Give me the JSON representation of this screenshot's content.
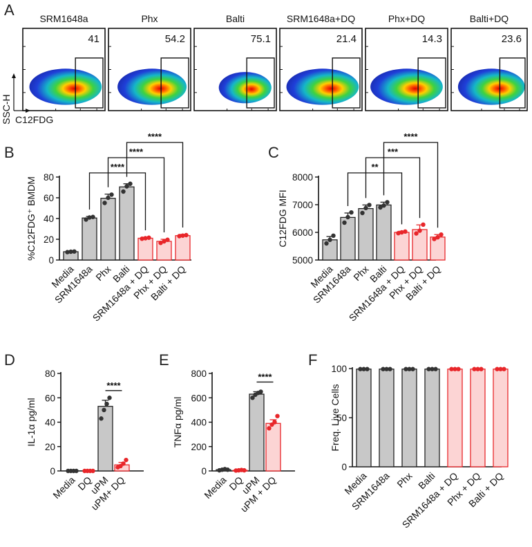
{
  "panels": {
    "a": "A",
    "b": "B",
    "c": "C",
    "d": "D",
    "e": "E",
    "f": "F"
  },
  "flow": {
    "y_axis_label": "SSC-H",
    "x_axis_label": "C12FDG",
    "plots": [
      {
        "title": "SRM1648a",
        "gate_percent": "41"
      },
      {
        "title": "Phx",
        "gate_percent": "54.2"
      },
      {
        "title": "Balti",
        "gate_percent": "75.1"
      },
      {
        "title": "SRM1648a+DQ",
        "gate_percent": "21.4"
      },
      {
        "title": "Phx+DQ",
        "gate_percent": "14.3"
      },
      {
        "title": "Balti+DQ",
        "gate_percent": "23.6"
      }
    ]
  },
  "colors": {
    "control_fill": "#c8c8c8",
    "control_stroke": "#222222",
    "dq_fill": "#fcd4d4",
    "dq_stroke": "#e8262a",
    "dq_point": "#e8262a",
    "control_point": "#333333"
  },
  "chart_data": [
    {
      "id": "B",
      "type": "bar",
      "ylabel": "%C12FDG⁺ BMDM",
      "ylim": [
        0,
        80
      ],
      "yticks": [
        "0",
        "20",
        "40",
        "60",
        "80"
      ],
      "categories": [
        "Media",
        "SRM1648a",
        "Phx",
        "Balti",
        "SRM1648a + DQ",
        "Phx + DQ",
        "Balti + DQ"
      ],
      "groups": [
        "control",
        "control",
        "control",
        "control",
        "dq",
        "dq",
        "dq"
      ],
      "values": [
        8,
        40.5,
        59.5,
        70.5,
        21,
        18,
        23.5
      ],
      "errors": [
        0.8,
        1.5,
        4,
        3,
        1,
        2,
        1.2
      ],
      "points": [
        [
          7.6,
          8,
          8.2
        ],
        [
          39,
          41,
          41.5
        ],
        [
          55,
          60,
          63
        ],
        [
          66,
          71,
          73.5
        ],
        [
          20.5,
          21,
          21.5
        ],
        [
          16.5,
          18,
          19.5
        ],
        [
          23,
          23.5,
          24
        ]
      ],
      "significance": [
        {
          "from": 1,
          "to": 4,
          "label": "****"
        },
        {
          "from": 2,
          "to": 5,
          "label": "****"
        },
        {
          "from": 3,
          "to": 6,
          "label": "****"
        }
      ]
    },
    {
      "id": "C",
      "type": "bar",
      "ylabel": "C12FDG MFI",
      "ylim": [
        5000,
        8000
      ],
      "yticks": [
        "5000",
        "6000",
        "7000",
        "8000"
      ],
      "categories": [
        "Media",
        "SRM1648a",
        "Phx",
        "Balti",
        "SRM1648a + DQ",
        "Phx + DQ",
        "Balti + DQ"
      ],
      "groups": [
        "control",
        "control",
        "control",
        "control",
        "dq",
        "dq",
        "dq"
      ],
      "values": [
        5730,
        6540,
        6860,
        6990,
        6000,
        6100,
        5830
      ],
      "errors": [
        120,
        160,
        130,
        100,
        40,
        170,
        90
      ],
      "points": [
        [
          5600,
          5730,
          5880
        ],
        [
          6350,
          6550,
          6720
        ],
        [
          6700,
          6880,
          6990
        ],
        [
          6900,
          6970,
          7090
        ],
        [
          5970,
          6000,
          6030
        ],
        [
          5960,
          6060,
          6280
        ],
        [
          5760,
          5820,
          5920
        ]
      ],
      "significance": [
        {
          "from": 1,
          "to": 4,
          "label": "**"
        },
        {
          "from": 2,
          "to": 5,
          "label": "***"
        },
        {
          "from": 3,
          "to": 6,
          "label": "****"
        }
      ]
    },
    {
      "id": "D",
      "type": "bar",
      "ylabel": "IL-1α pg/ml",
      "ylim": [
        0,
        80
      ],
      "yticks": [
        "0",
        "20",
        "40",
        "60",
        "80"
      ],
      "categories": [
        "Media",
        "DQ",
        "uPM",
        "uPM+ DQ"
      ],
      "groups": [
        "control",
        "dq",
        "control",
        "dq"
      ],
      "values": [
        0,
        0,
        53,
        5
      ],
      "errors": [
        0,
        0,
        5,
        2
      ],
      "points": [
        [
          0,
          0,
          0,
          0
        ],
        [
          0,
          0,
          0,
          0
        ],
        [
          43,
          50,
          55,
          60
        ],
        [
          3,
          4,
          6,
          9
        ]
      ],
      "significance": [
        {
          "from": 2,
          "to": 3,
          "label": "****"
        }
      ]
    },
    {
      "id": "E",
      "type": "bar",
      "ylabel": "TNFα pg/ml",
      "ylim": [
        0,
        800
      ],
      "yticks": [
        "0",
        "200",
        "400",
        "600",
        "800"
      ],
      "categories": [
        "Media",
        "DQ",
        "uPM",
        "uPM + DQ"
      ],
      "groups": [
        "control",
        "dq",
        "control",
        "dq"
      ],
      "values": [
        10,
        5,
        630,
        390
      ],
      "errors": [
        5,
        3,
        20,
        30
      ],
      "points": [
        [
          5,
          10,
          15,
          10
        ],
        [
          3,
          5,
          8,
          5
        ],
        [
          600,
          625,
          640,
          650
        ],
        [
          350,
          380,
          400,
          450
        ]
      ],
      "significance": [
        {
          "from": 2,
          "to": 3,
          "label": "****"
        }
      ]
    },
    {
      "id": "F",
      "type": "bar",
      "ylabel": "Freq. Live Cells",
      "ylim": [
        0,
        100
      ],
      "yticks": [
        "0",
        "50",
        "100"
      ],
      "categories": [
        "Media",
        "SRM1648a",
        "Phx",
        "Balti",
        "SRM1648a + DQ",
        "Phx + DQ",
        "Balti + DQ"
      ],
      "groups": [
        "control",
        "control",
        "control",
        "control",
        "dq",
        "dq",
        "dq"
      ],
      "values": [
        99.5,
        99.5,
        99.5,
        99.5,
        99.5,
        99.5,
        99.5
      ],
      "errors": [
        0,
        0,
        0,
        0,
        0,
        0,
        0
      ],
      "points": [
        [
          99.5,
          99.5,
          99.5
        ],
        [
          99.5,
          99.5,
          99.5
        ],
        [
          99.5,
          99.5,
          99.5
        ],
        [
          99.5,
          99.5,
          99.5
        ],
        [
          99.5,
          99.5,
          99.5
        ],
        [
          99.5,
          99.5,
          99.5
        ],
        [
          99.5,
          99.5,
          99.5
        ]
      ],
      "significance": []
    }
  ]
}
